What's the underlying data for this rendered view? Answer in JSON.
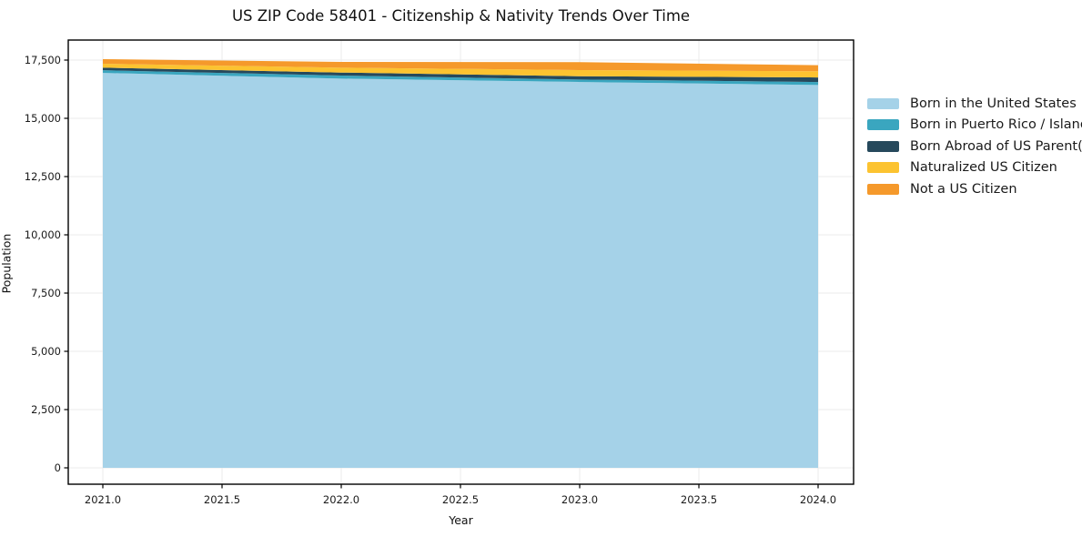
{
  "chart_data": {
    "type": "area",
    "stacked": true,
    "title": "US ZIP Code 58401 - Citizenship & Nativity Trends Over Time",
    "xlabel": "Year",
    "ylabel": "Population",
    "x": [
      2021,
      2022,
      2023,
      2024
    ],
    "series": [
      {
        "name": "Born in the United States",
        "color": "#a5d2e8",
        "values": [
          16950,
          16705,
          16560,
          16430
        ]
      },
      {
        "name": "Born in Puerto Rico / Islands",
        "color": "#3aa6bf",
        "values": [
          115,
          130,
          105,
          130
        ]
      },
      {
        "name": "Born Abroad of US Parent(s)",
        "color": "#26495c",
        "values": [
          110,
          130,
          140,
          195
        ]
      },
      {
        "name": "Naturalized US Citizen",
        "color": "#fcc330",
        "values": [
          170,
          210,
          265,
          265
        ]
      },
      {
        "name": "Not a US Citizen",
        "color": "#f5992b",
        "values": [
          195,
          245,
          340,
          260
        ]
      }
    ],
    "xticks": {
      "values": [
        2021.0,
        2021.5,
        2022.0,
        2022.5,
        2023.0,
        2023.5,
        2024.0
      ],
      "labels": [
        "2021.0",
        "2021.5",
        "2022.0",
        "2022.5",
        "2023.0",
        "2023.5",
        "2024.0"
      ]
    },
    "yticks": {
      "values": [
        0,
        2500,
        5000,
        7500,
        10000,
        12500,
        15000,
        17500
      ],
      "labels": [
        "0",
        "2,500",
        "5,000",
        "7,500",
        "10,000",
        "12,500",
        "15,000",
        "17,500"
      ]
    },
    "xlim": [
      2020.855,
      2024.149
    ],
    "ylim": [
      -703,
      18359
    ],
    "grid": true,
    "grid_color": "#ebebeb",
    "spine_color": "#000000",
    "tick_text_color": "#1a1a1a",
    "background": "#ffffff",
    "legend_position": "right"
  }
}
